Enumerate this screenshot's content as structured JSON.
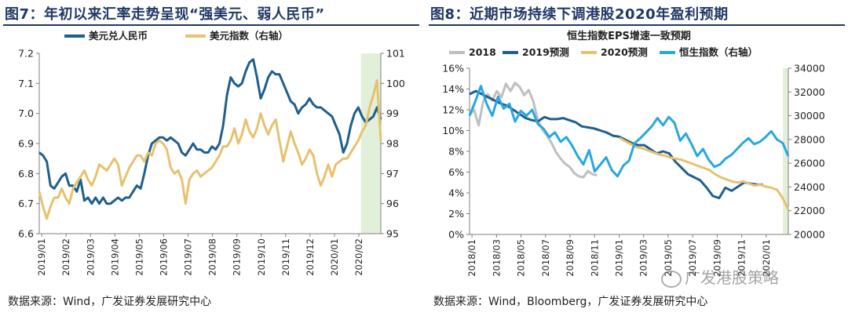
{
  "left_panel": {
    "figure_title": "图7：年初以来汇率走势呈现“强美元、弱人民币”",
    "source": "数据来源：Wind，广发证券发展研究中心",
    "chart_data": {
      "type": "line",
      "title": "",
      "legend_placement": "top",
      "series": [
        {
          "name": "美元兑人民币",
          "color": "#1f5f8b",
          "axis": "left",
          "values": [
            6.87,
            6.86,
            6.84,
            6.76,
            6.75,
            6.77,
            6.79,
            6.8,
            6.76,
            6.76,
            6.74,
            6.78,
            6.71,
            6.72,
            6.7,
            6.72,
            6.7,
            6.72,
            6.7,
            6.7,
            6.71,
            6.72,
            6.71,
            6.72,
            6.72,
            6.74,
            6.76,
            6.75,
            6.8,
            6.86,
            6.9,
            6.91,
            6.92,
            6.92,
            6.91,
            6.92,
            6.91,
            6.9,
            6.87,
            6.86,
            6.88,
            6.9,
            6.88,
            6.88,
            6.87,
            6.87,
            6.89,
            6.88,
            6.9,
            6.96,
            7.06,
            7.12,
            7.1,
            7.09,
            7.1,
            7.14,
            7.17,
            7.18,
            7.12,
            7.05,
            7.08,
            7.12,
            7.14,
            7.13,
            7.13,
            7.1,
            7.07,
            7.04,
            7.03,
            7.0,
            7.02,
            7.03,
            7.05,
            7.03,
            7.02,
            7.02,
            7.01,
            7.0,
            6.99,
            6.96,
            6.93,
            6.87,
            6.9,
            6.96,
            7.0,
            7.02,
            6.99,
            6.97,
            6.98,
            6.99,
            7.02,
            6.98
          ]
        },
        {
          "name": "美元指数（右轴）",
          "color": "#e6c26e",
          "axis": "right",
          "values": [
            96.4,
            95.9,
            95.5,
            95.9,
            96.2,
            96.2,
            96.5,
            96.2,
            96.0,
            96.5,
            96.7,
            96.9,
            97.1,
            96.8,
            96.6,
            96.9,
            97.3,
            97.2,
            97.1,
            97.3,
            97.5,
            97.3,
            96.6,
            96.9,
            97.2,
            97.4,
            97.6,
            97.6,
            97.4,
            97.7,
            97.6,
            98.0,
            98.1,
            98.0,
            97.8,
            97.2,
            97.0,
            97.1,
            96.8,
            96.0,
            96.8,
            97.0,
            97.1,
            96.9,
            97.0,
            97.1,
            97.2,
            97.4,
            97.6,
            97.9,
            97.9,
            98.1,
            98.5,
            98.0,
            98.3,
            98.8,
            98.4,
            98.2,
            98.5,
            99.0,
            98.6,
            98.3,
            98.6,
            98.8,
            98.1,
            97.4,
            97.9,
            98.4,
            98.0,
            97.7,
            97.3,
            97.5,
            97.8,
            97.6,
            97.0,
            96.6,
            96.9,
            97.3,
            96.9,
            97.3,
            97.4,
            97.5,
            97.5,
            97.7,
            97.9,
            98.1,
            98.4,
            98.6,
            99.2,
            99.6,
            100.1,
            98.1
          ]
        }
      ],
      "x_ticks": [
        "2019/01",
        "2019/02",
        "2019/03",
        "2019/04",
        "2019/05",
        "2019/06",
        "2019/07",
        "2019/08",
        "2019/09",
        "2019/10",
        "2019/11",
        "2019/12",
        "2020/01",
        "2020/02"
      ],
      "y_left": {
        "min": 6.6,
        "max": 7.2,
        "ticks": [
          "6.6",
          "6.7",
          "6.8",
          "6.9",
          "7.0",
          "7.1",
          "7.2"
        ]
      },
      "y_right": {
        "min": 95,
        "max": 101,
        "ticks": [
          "95",
          "96",
          "97",
          "98",
          "99",
          "100",
          "101"
        ]
      },
      "highlight": {
        "from_fraction": 0.942,
        "to_fraction": 1.0,
        "color": "#e2f0d9"
      }
    }
  },
  "right_panel": {
    "figure_title": "图8：近期市场持续下调港股2020年盈利预期",
    "source": "数据来源：Wind，Bloomberg，广发证券发展研究中心",
    "watermark": "广发港股策略",
    "chart_data": {
      "type": "line",
      "title": "恒生指数EPS增速一致预期",
      "legend_placement": "top",
      "series": [
        {
          "name": "2018",
          "color": "#bfbfbf",
          "axis": "left",
          "values": [
            11.5,
            12.0,
            10.5,
            12.8,
            13.5,
            12.9,
            13.8,
            13.2,
            14.5,
            13.8,
            14.6,
            14.2,
            13.4,
            13.9,
            12.8,
            11.0,
            10.1,
            9.5,
            8.8,
            7.9,
            7.3,
            6.8,
            6.5,
            5.9,
            5.6,
            5.5,
            6.1,
            5.8,
            5.7
          ]
        },
        {
          "name": "2019预测",
          "color": "#1f5f8b",
          "axis": "left",
          "values": [
            13.5,
            13.8,
            13.5,
            13.2,
            12.9,
            12.6,
            12.4,
            12.0,
            11.6,
            11.2,
            11.0,
            10.9,
            11.3,
            11.1,
            11.1,
            11.2,
            11.0,
            10.8,
            10.4,
            10.3,
            10.2,
            10.0,
            9.8,
            9.5,
            9.4,
            9.1,
            8.8,
            8.6,
            8.6,
            8.2,
            7.8,
            8.0,
            7.8,
            7.0,
            6.4,
            5.8,
            5.5,
            5.2,
            4.5,
            3.7,
            3.5,
            4.5,
            4.2,
            4.6,
            5.0,
            4.9,
            4.8,
            4.8
          ]
        },
        {
          "name": "2020预测",
          "color": "#e6c26e",
          "axis": "left",
          "values": [
            9.3,
            9.0,
            8.7,
            8.4,
            8.3,
            8.1,
            7.9,
            7.7,
            7.6,
            7.4,
            7.3,
            7.2,
            7.0,
            6.8,
            6.6,
            6.4,
            6.2,
            5.8,
            5.5,
            5.3,
            5.1,
            5.0,
            5.1,
            4.9,
            4.7,
            4.8,
            4.6,
            4.5,
            4.3,
            3.5,
            2.4
          ]
        },
        {
          "name": "恒生指数（右轴）",
          "color": "#27a7e0",
          "axis": "right",
          "values": [
            30000,
            31200,
            32500,
            31000,
            30000,
            31600,
            30600,
            31000,
            29500,
            30400,
            30000,
            30500,
            29300,
            28900,
            28200,
            28600,
            27800,
            28200,
            27500,
            26600,
            25900,
            27100,
            25300,
            25900,
            26500,
            25400,
            24900,
            25800,
            26200,
            27700,
            28100,
            28600,
            29100,
            29800,
            29200,
            29900,
            29400,
            27900,
            28500,
            27600,
            26600,
            27200,
            26300,
            25700,
            25900,
            26400,
            26700,
            27200,
            27700,
            28100,
            27600,
            27800,
            28200,
            28700,
            28000,
            27700,
            26600
          ]
        }
      ],
      "x_ticks": [
        "2018/01",
        "2018/03",
        "2018/05",
        "2018/07",
        "2018/09",
        "2018/11",
        "2019/01",
        "2019/03",
        "2019/05",
        "2019/07",
        "2019/09",
        "2019/11",
        "2020/01"
      ],
      "y_left": {
        "min": 0,
        "max": 16,
        "ticks": [
          "0%",
          "2%",
          "4%",
          "6%",
          "8%",
          "10%",
          "12%",
          "14%",
          "16%"
        ]
      },
      "y_right": {
        "min": 20000,
        "max": 34000,
        "ticks": [
          "20000",
          "22000",
          "24000",
          "26000",
          "28000",
          "30000",
          "32000",
          "34000"
        ]
      },
      "highlight": {
        "from_fraction": 0.983,
        "to_fraction": 1.0,
        "color": "#e2f0d9"
      }
    }
  }
}
